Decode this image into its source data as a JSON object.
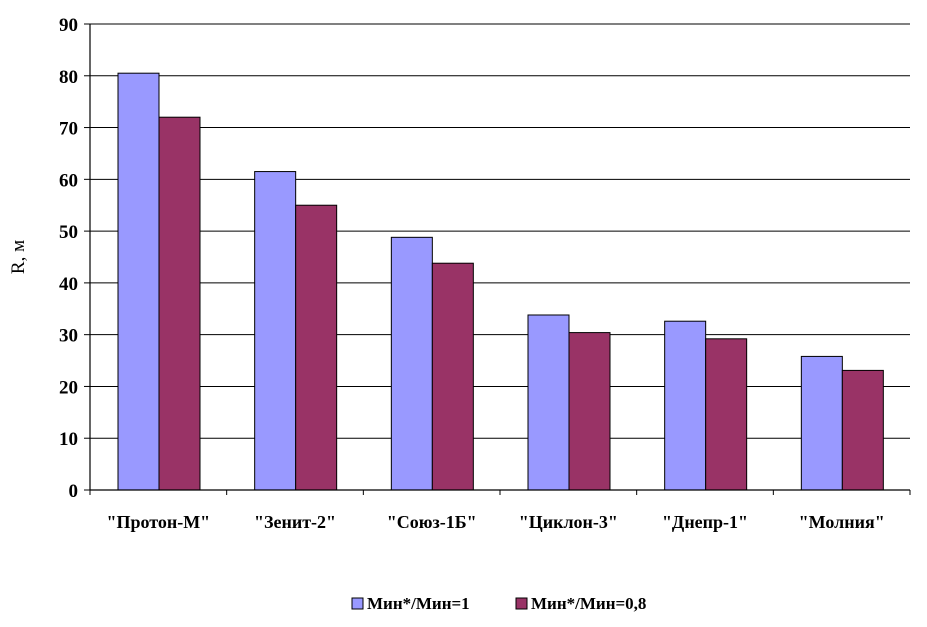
{
  "chart_data": {
    "type": "bar",
    "categories": [
      "\"Протон-М\"",
      "\"Зенит-2\"",
      "\"Союз-1Б\"",
      "\"Циклон-3\"",
      "\"Днепр-1\"",
      "\"Молния\""
    ],
    "series": [
      {
        "name": "Мин*/Мин=1",
        "values": [
          80.5,
          61.5,
          48.8,
          33.8,
          32.6,
          25.8
        ],
        "color": "#9999ff"
      },
      {
        "name": "Мин*/Мин=0,8",
        "values": [
          72.0,
          55.0,
          43.8,
          30.4,
          29.2,
          23.1
        ],
        "color": "#993366"
      }
    ],
    "title": "",
    "xlabel": "",
    "ylabel": "R, м",
    "ylim": [
      0,
      90
    ],
    "yticks": [
      "0",
      "10",
      "20",
      "30",
      "40",
      "50",
      "60",
      "70",
      "80",
      "90"
    ],
    "grid": true,
    "legend_position": "bottom"
  }
}
